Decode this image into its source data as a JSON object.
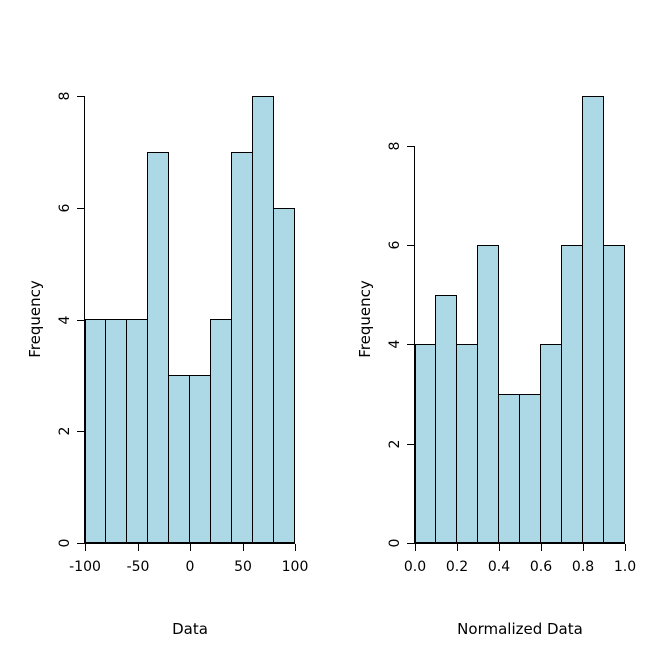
{
  "figure": {
    "background": "#ffffff"
  },
  "chart_data": [
    {
      "type": "bar",
      "subtype": "histogram",
      "title": "",
      "xlabel": "Data",
      "ylabel": "Frequency",
      "bin_edges": [
        -100,
        -80,
        -60,
        -40,
        -20,
        0,
        20,
        40,
        60,
        80,
        100
      ],
      "values": [
        4,
        4,
        4,
        7,
        3,
        3,
        4,
        7,
        8,
        6
      ],
      "xticks": [
        -100,
        -50,
        0,
        50,
        100
      ],
      "xtick_labels": [
        "-100",
        "-50",
        "0",
        "50",
        "100"
      ],
      "yticks": [
        0,
        2,
        4,
        6,
        8
      ],
      "ytick_labels": [
        "0",
        "2",
        "4",
        "6",
        "8"
      ],
      "xlim": [
        -100,
        100
      ],
      "ylim": [
        0,
        8
      ],
      "grid": false,
      "legend": false,
      "bar_color": "#ADD8E6",
      "bar_border": "#000000"
    },
    {
      "type": "bar",
      "subtype": "histogram",
      "title": "",
      "xlabel": "Normalized Data",
      "ylabel": "Frequency",
      "bin_edges": [
        0,
        0.1,
        0.2,
        0.3,
        0.4,
        0.5,
        0.6,
        0.7,
        0.8,
        0.9,
        1.0
      ],
      "values": [
        4,
        5,
        4,
        6,
        3,
        3,
        4,
        6,
        9,
        6
      ],
      "xticks": [
        0.0,
        0.2,
        0.4,
        0.6,
        0.8,
        1.0
      ],
      "xtick_labels": [
        "0.0",
        "0.2",
        "0.4",
        "0.6",
        "0.8",
        "1.0"
      ],
      "yticks": [
        0,
        2,
        4,
        6,
        8
      ],
      "ytick_labels": [
        "0",
        "2",
        "4",
        "6",
        "8"
      ],
      "xlim": [
        0,
        1
      ],
      "ylim": [
        0,
        9
      ],
      "grid": false,
      "legend": false,
      "bar_color": "#ADD8E6",
      "bar_border": "#000000"
    }
  ]
}
